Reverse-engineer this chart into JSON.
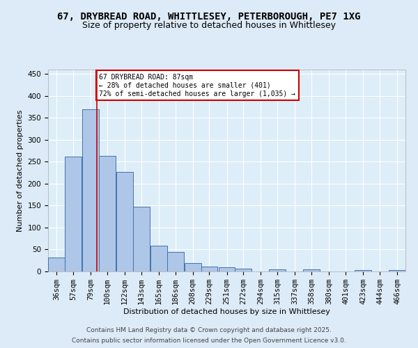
{
  "title_line1": "67, DRYBREAD ROAD, WHITTLESEY, PETERBOROUGH, PE7 1XG",
  "title_line2": "Size of property relative to detached houses in Whittlesey",
  "xlabel": "Distribution of detached houses by size in Whittlesey",
  "ylabel": "Number of detached properties",
  "bar_values": [
    32,
    262,
    370,
    263,
    227,
    148,
    58,
    44,
    19,
    11,
    10,
    6,
    0,
    5,
    0,
    4,
    0,
    0,
    3,
    0,
    3
  ],
  "bar_labels": [
    "36sqm",
    "57sqm",
    "79sqm",
    "100sqm",
    "122sqm",
    "143sqm",
    "165sqm",
    "186sqm",
    "208sqm",
    "229sqm",
    "251sqm",
    "272sqm",
    "294sqm",
    "315sqm",
    "337sqm",
    "358sqm",
    "380sqm",
    "401sqm",
    "423sqm",
    "444sqm",
    "466sqm"
  ],
  "bin_width": 21,
  "bar_color": "#aec6e8",
  "bar_edge_color": "#4472a8",
  "red_line_x": 87,
  "ylim": [
    0,
    460
  ],
  "annotation_text": "67 DRYBREAD ROAD: 87sqm\n← 28% of detached houses are smaller (401)\n72% of semi-detached houses are larger (1,035) →",
  "annotation_box_color": "#ffffff",
  "annotation_box_edge_color": "#cc0000",
  "footer_line1": "Contains HM Land Registry data © Crown copyright and database right 2025.",
  "footer_line2": "Contains public sector information licensed under the Open Government Licence v3.0.",
  "bg_color": "#ddeaf7",
  "plot_bg_color": "#ddeef8",
  "grid_color": "#ffffff",
  "title_fontsize": 10,
  "subtitle_fontsize": 9,
  "axis_fontsize": 8,
  "tick_fontsize": 7.5
}
